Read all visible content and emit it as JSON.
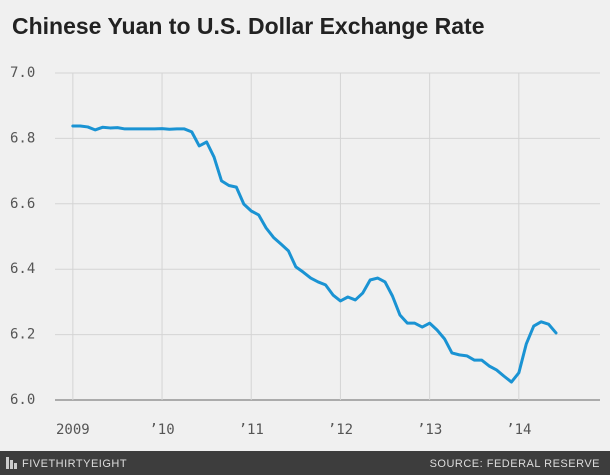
{
  "chart_data": {
    "type": "line",
    "title": "Chinese Yuan to U.S. Dollar Exchange Rate",
    "x": [
      2009,
      2009.083,
      2009.167,
      2009.25,
      2009.333,
      2009.417,
      2009.5,
      2009.583,
      2009.667,
      2009.75,
      2009.833,
      2009.917,
      2010,
      2010.083,
      2010.167,
      2010.25,
      2010.333,
      2010.417,
      2010.5,
      2010.583,
      2010.667,
      2010.75,
      2010.833,
      2010.917,
      2011,
      2011.083,
      2011.167,
      2011.25,
      2011.333,
      2011.417,
      2011.5,
      2011.583,
      2011.667,
      2011.75,
      2011.833,
      2011.917,
      2012,
      2012.083,
      2012.167,
      2012.25,
      2012.333,
      2012.417,
      2012.5,
      2012.583,
      2012.667,
      2012.75,
      2012.833,
      2012.917,
      2013,
      2013.083,
      2013.167,
      2013.25,
      2013.333,
      2013.417,
      2013.5,
      2013.583,
      2013.667,
      2013.75,
      2013.833,
      2013.917,
      2014,
      2014.083,
      2014.167,
      2014.25,
      2014.333,
      2014.417
    ],
    "values": [
      6.838,
      6.838,
      6.835,
      6.826,
      6.834,
      6.832,
      6.833,
      6.829,
      6.829,
      6.829,
      6.829,
      6.829,
      6.83,
      6.828,
      6.829,
      6.829,
      6.82,
      6.777,
      6.789,
      6.743,
      6.67,
      6.656,
      6.651,
      6.599,
      6.578,
      6.566,
      6.526,
      6.497,
      6.477,
      6.456,
      6.407,
      6.391,
      6.373,
      6.361,
      6.352,
      6.321,
      6.303,
      6.315,
      6.306,
      6.327,
      6.367,
      6.373,
      6.361,
      6.318,
      6.26,
      6.235,
      6.235,
      6.223,
      6.235,
      6.214,
      6.187,
      6.144,
      6.138,
      6.135,
      6.122,
      6.122,
      6.104,
      6.092,
      6.073,
      6.055,
      6.083,
      6.171,
      6.226,
      6.239,
      6.232,
      6.205
    ],
    "color": "#1a93d3",
    "xlim": [
      2008.8,
      2014.91
    ],
    "xticks": [
      2009,
      {
        "value": 2010,
        "label": "’10"
      },
      {
        "value": 2011,
        "label": "’11"
      },
      {
        "value": 2012,
        "label": "’12"
      },
      {
        "value": 2013,
        "label": "’13"
      },
      {
        "value": 2014,
        "label": "’14"
      }
    ],
    "ylim": [
      6.0,
      7.0
    ],
    "yticks": [
      {
        "value": 6.0,
        "label": "6.0"
      },
      6.2,
      6.4,
      6.6,
      6.8,
      {
        "value": 7.0,
        "label": "7.0"
      }
    ],
    "grid": true
  },
  "footer": {
    "brand": "FIVETHIRTYEIGHT",
    "source": "SOURCE: FEDERAL RESERVE"
  }
}
